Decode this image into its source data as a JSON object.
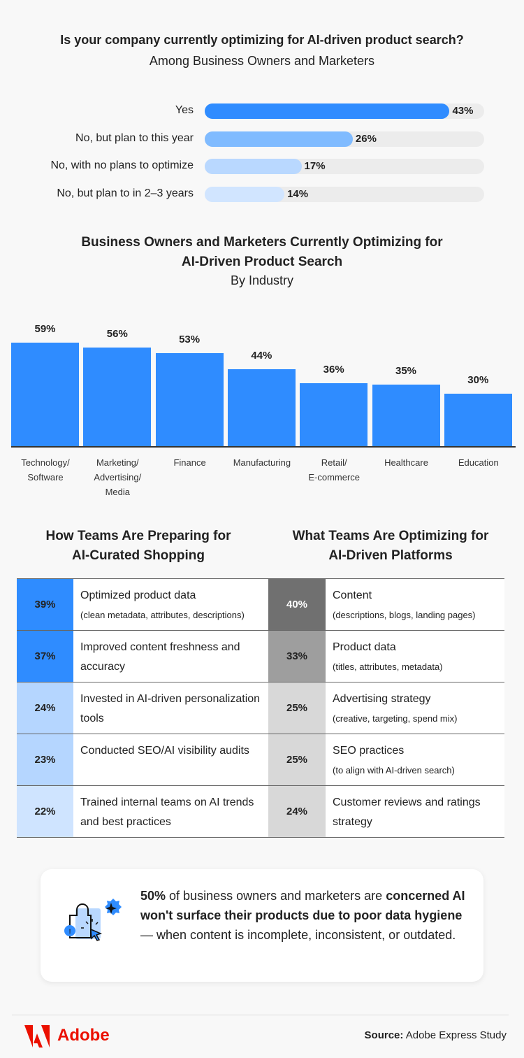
{
  "chart_data": [
    {
      "type": "bar",
      "orientation": "horizontal",
      "title": "Is your company currently optimizing for AI-driven product search?",
      "subtitle": "Among Business Owners and Marketers",
      "categories": [
        "Yes",
        "No, but plan to this year",
        "No, with no plans to optimize",
        "No, but plan to in 2–3 years"
      ],
      "values": [
        43,
        26,
        17,
        14
      ],
      "labels": [
        "43%",
        "26%",
        "17%",
        "14%"
      ],
      "colors": [
        "#2f8cff",
        "#80bbff",
        "#b9d8ff",
        "#d1e5ff"
      ]
    },
    {
      "type": "bar",
      "title": "Business Owners and Marketers Currently Optimizing for AI-Driven Product Search",
      "subtitle": "By Industry",
      "categories": [
        "Technology/ Software",
        "Marketing/ Advertising/ Media",
        "Finance",
        "Manufacturing",
        "Retail/ E-commerce",
        "Healthcare",
        "Education"
      ],
      "category_lines": [
        [
          "Technology/",
          "Software"
        ],
        [
          "Marketing/",
          "Advertising/",
          "Media"
        ],
        [
          "Finance"
        ],
        [
          "Manufacturing"
        ],
        [
          "Retail/",
          "E-commerce"
        ],
        [
          "Healthcare"
        ],
        [
          "Education"
        ]
      ],
      "values": [
        59,
        56,
        53,
        44,
        36,
        35,
        30
      ],
      "labels": [
        "59%",
        "56%",
        "53%",
        "44%",
        "36%",
        "35%",
        "30%"
      ],
      "color": "#2f8cff"
    },
    {
      "type": "table",
      "title": "How Teams Are Preparing for AI-Curated Shopping",
      "title_lines": [
        "How Teams Are Preparing for",
        "AI-Curated Shopping"
      ],
      "rows": [
        {
          "pct": "39%",
          "text": "Optimized product data",
          "sub": "(clean metadata, attributes, descriptions)",
          "color": "#2f8cff"
        },
        {
          "pct": "37%",
          "text": "Improved content freshness and accuracy",
          "sub": "",
          "color": "#2f8cff"
        },
        {
          "pct": "24%",
          "text": "Invested in AI-driven personalization tools",
          "sub": "",
          "color": "#b5d6ff"
        },
        {
          "pct": "23%",
          "text": "Conducted SEO/AI visibility audits",
          "sub": "",
          "color": "#b5d6ff"
        },
        {
          "pct": "22%",
          "text": "Trained internal teams on AI trends and best practices",
          "sub": "",
          "color": "#cfe4ff"
        }
      ]
    },
    {
      "type": "table",
      "title": "What Teams Are Optimizing for AI-Driven Platforms",
      "title_lines": [
        "What Teams Are Optimizing for",
        "AI-Driven Platforms"
      ],
      "rows": [
        {
          "pct": "40%",
          "text": "Content",
          "sub": "(descriptions, blogs, landing pages)",
          "color": "#707070",
          "light_text": true
        },
        {
          "pct": "33%",
          "text": "Product data",
          "sub": "(titles, attributes, metadata)",
          "color": "#9e9e9e"
        },
        {
          "pct": "25%",
          "text": "Advertising strategy",
          "sub": "(creative, targeting, spend mix)",
          "color": "#d8d8d8"
        },
        {
          "pct": "25%",
          "text": "SEO practices",
          "sub": "(to align with AI-driven search)",
          "color": "#d8d8d8"
        },
        {
          "pct": "24%",
          "text": "Customer reviews and ratings strategy",
          "sub": "",
          "color": "#d8d8d8"
        }
      ]
    }
  ],
  "callout": {
    "icon": "shopping-bag-alert-icon",
    "bold1": "50%",
    "text1": " of business owners and marketers are ",
    "bold2": "concerned AI won't surface their products due to poor data hygiene",
    "text2": " — when content is incomplete, inconsistent, or outdated."
  },
  "footer": {
    "brand": "Adobe",
    "brand_color": "#eb1000",
    "source_label": "Source:",
    "source_value": " Adobe Express Study"
  }
}
